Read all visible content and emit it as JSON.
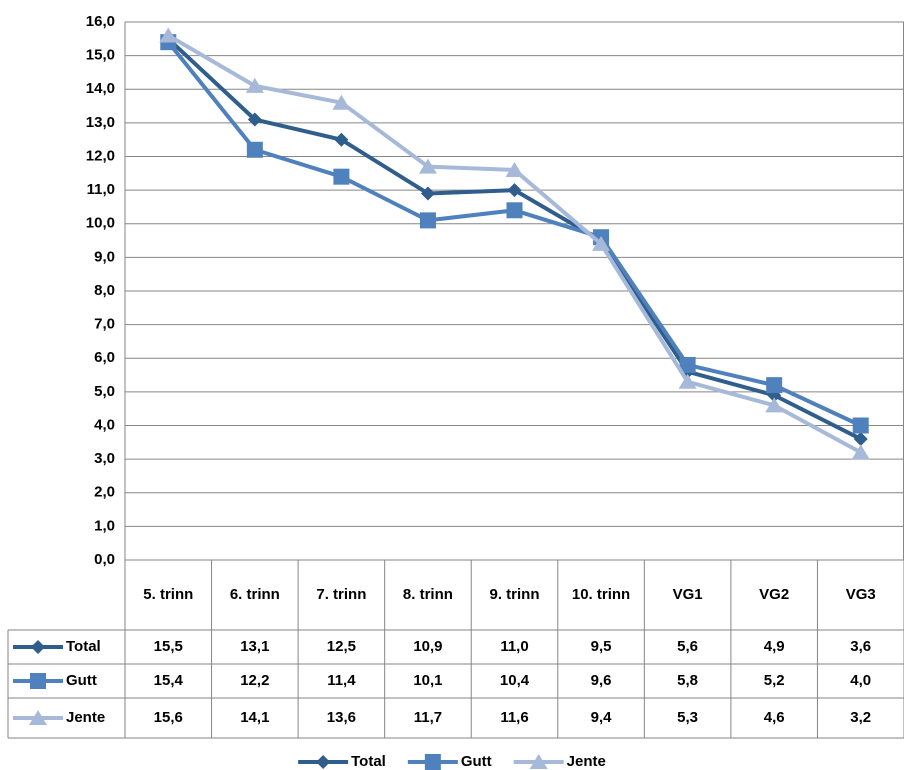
{
  "chart_data": {
    "type": "line",
    "categories": [
      "5. trinn",
      "6. trinn",
      "7. trinn",
      "8. trinn",
      "9. trinn",
      "10. trinn",
      "VG1",
      "VG2",
      "VG3"
    ],
    "series": [
      {
        "name": "Total",
        "color": "#2f5d8c",
        "marker": "diamond",
        "values": [
          15.5,
          13.1,
          12.5,
          10.9,
          11.0,
          9.5,
          5.6,
          4.9,
          3.6
        ],
        "value_labels": [
          "15,5",
          "13,1",
          "12,5",
          "10,9",
          "11,0",
          "9,5",
          "5,6",
          "4,9",
          "3,6"
        ]
      },
      {
        "name": "Gutt",
        "color": "#4f81bd",
        "marker": "square",
        "values": [
          15.4,
          12.2,
          11.4,
          10.1,
          10.4,
          9.6,
          5.8,
          5.2,
          4.0
        ],
        "value_labels": [
          "15,4",
          "12,2",
          "11,4",
          "10,1",
          "10,4",
          "9,6",
          "5,8",
          "5,2",
          "4,0"
        ]
      },
      {
        "name": "Jente",
        "color": "#a6b9d9",
        "marker": "triangle",
        "values": [
          15.6,
          14.1,
          13.6,
          11.7,
          11.6,
          9.4,
          5.3,
          4.6,
          3.2
        ],
        "value_labels": [
          "15,6",
          "14,1",
          "13,6",
          "11,7",
          "11,6",
          "9,4",
          "5,3",
          "4,6",
          "3,2"
        ]
      }
    ],
    "ylim": [
      0,
      16
    ],
    "yticks": [
      {
        "value": 0,
        "label": "0,0"
      },
      {
        "value": 1,
        "label": "1,0"
      },
      {
        "value": 2,
        "label": "2,0"
      },
      {
        "value": 3,
        "label": "3,0"
      },
      {
        "value": 4,
        "label": "4,0"
      },
      {
        "value": 5,
        "label": "5,0"
      },
      {
        "value": 6,
        "label": "6,0"
      },
      {
        "value": 7,
        "label": "7,0"
      },
      {
        "value": 8,
        "label": "8,0"
      },
      {
        "value": 9,
        "label": "9,0"
      },
      {
        "value": 10,
        "label": "10,0"
      },
      {
        "value": 11,
        "label": "11,0"
      },
      {
        "value": 12,
        "label": "12,0"
      },
      {
        "value": 13,
        "label": "13,0"
      },
      {
        "value": 14,
        "label": "14,0"
      },
      {
        "value": 15,
        "label": "15,0"
      },
      {
        "value": 16,
        "label": "16,0"
      }
    ],
    "grid": true,
    "data_table": true,
    "legend": "bottom"
  }
}
